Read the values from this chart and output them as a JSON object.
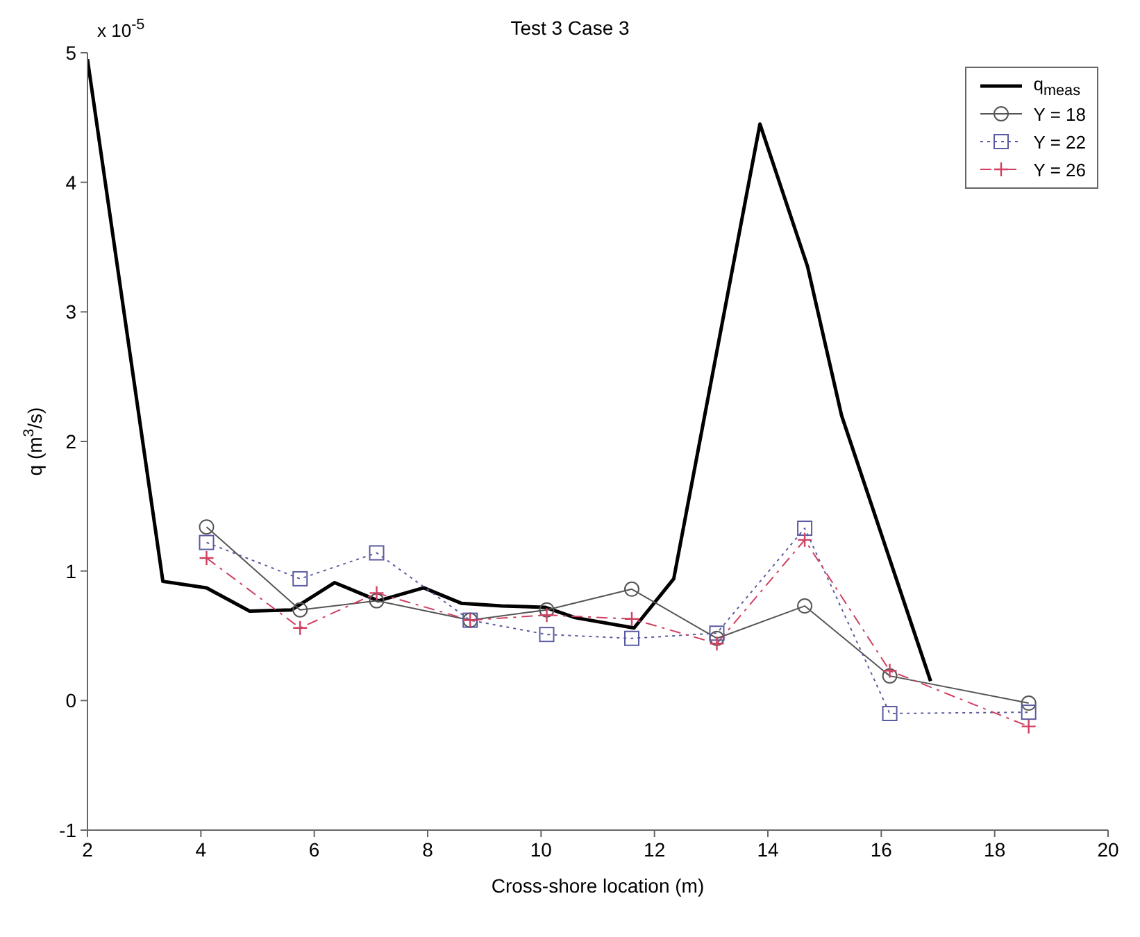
{
  "chart_data": {
    "type": "line",
    "title": "Test 3 Case 3",
    "xlabel": "Cross-shore location (m)",
    "ylabel": "q (m$^{3}$/s)",
    "annotations": [
      "x 10$^{-5}$"
    ],
    "xlim": [
      2,
      20
    ],
    "xticks": [
      2,
      4,
      6,
      8,
      10,
      12,
      14,
      16,
      18,
      20
    ],
    "ylim": [
      -1,
      5
    ],
    "yticks": [
      -1,
      0,
      1,
      2,
      3,
      4,
      5
    ],
    "grid": false,
    "legend": "top right",
    "series": [
      {
        "name": "q$_{meas}$",
        "color": "#000000",
        "marker": "none",
        "line_style": "solid",
        "x": [
          2,
          3.33,
          4.1,
          4.86,
          5.6,
          6.36,
          7.13,
          7.93,
          8.6,
          9.3,
          10.07,
          10.6,
          11.64,
          12.34,
          13.86,
          14.7,
          15.3,
          16.87
        ],
        "values": [
          4.95,
          0.92,
          0.87,
          0.69,
          0.7,
          0.91,
          0.77,
          0.87,
          0.75,
          0.73,
          0.72,
          0.64,
          0.56,
          0.94,
          4.45,
          3.35,
          2.2,
          0.15
        ]
      },
      {
        "name": "Y = 18",
        "color": "#555555",
        "marker": "circle",
        "line_style": "solid",
        "x": [
          4.1,
          5.75,
          7.1,
          8.75,
          10.1,
          11.6,
          13.1,
          14.65,
          16.15,
          18.6
        ],
        "values": [
          1.34,
          0.7,
          0.77,
          0.62,
          0.7,
          0.86,
          0.48,
          0.73,
          0.19,
          -0.02
        ]
      },
      {
        "name": "Y = 22",
        "color": "#5a5aa0",
        "marker": "square",
        "line_style": "dotted",
        "x": [
          4.1,
          5.75,
          7.1,
          8.75,
          10.1,
          11.6,
          13.1,
          14.65,
          16.15,
          18.6
        ],
        "values": [
          1.22,
          0.94,
          1.14,
          0.62,
          0.51,
          0.48,
          0.52,
          1.33,
          -0.1,
          -0.09
        ]
      },
      {
        "name": "Y = 26",
        "color": "#d04060",
        "marker": "cross",
        "line_style": "dashed",
        "x": [
          4.1,
          5.75,
          7.1,
          8.75,
          10.1,
          11.6,
          13.1,
          14.65,
          16.15,
          18.6
        ],
        "values": [
          1.1,
          0.56,
          0.83,
          0.62,
          0.66,
          0.63,
          0.44,
          1.24,
          0.23,
          -0.2
        ]
      }
    ]
  }
}
